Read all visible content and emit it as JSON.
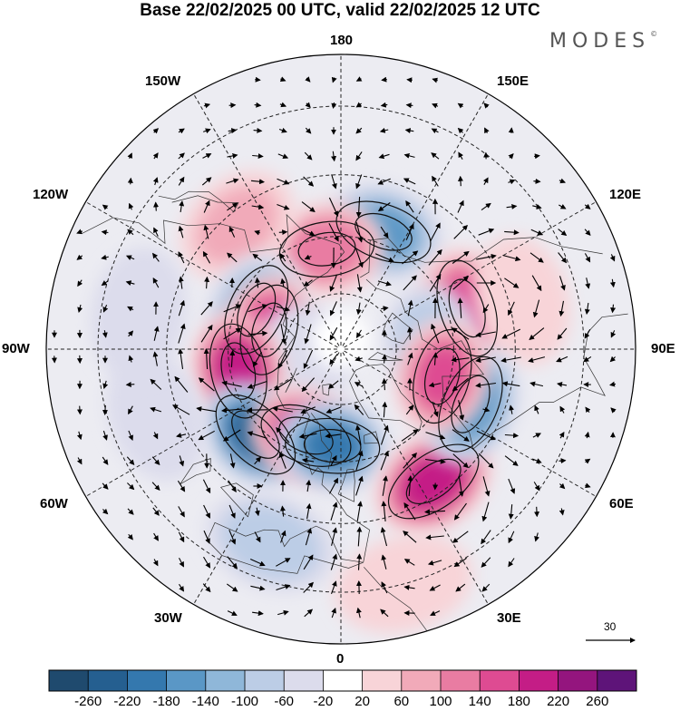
{
  "title": "Base 22/02/2025 00 UTC, valid 22/02/2025 12 UTC",
  "brand": "MODES",
  "brand_mark": "©",
  "longitude_labels": {
    "lon_180": "180",
    "lon_150w": "150W",
    "lon_150e": "150E",
    "lon_120w": "120W",
    "lon_120e": "120E",
    "lon_90w": "90W",
    "lon_90e": "90E",
    "lon_60w": "60W",
    "lon_60e": "60E",
    "lon_30w": "30W",
    "lon_30e": "30E",
    "lon_0": "0"
  },
  "wind_reference": {
    "value": "30"
  },
  "colorbar": {
    "ticks": [
      "-260",
      "-220",
      "-180",
      "-140",
      "-100",
      "-60",
      "-20",
      "20",
      "60",
      "100",
      "140",
      "180",
      "220",
      "260"
    ],
    "colors": [
      "#1f4a6e",
      "#255f90",
      "#3478ae",
      "#5a97c6",
      "#8fb7d9",
      "#bccde6",
      "#dcdcec",
      "#ffffff",
      "#f8d4d8",
      "#f1aab9",
      "#e97ca2",
      "#de4b92",
      "#c41d86",
      "#94157e",
      "#5e1479"
    ]
  },
  "anomaly_centers": [
    {
      "lat": 57,
      "lon": -160,
      "value": -160
    },
    {
      "lat": 63,
      "lon": 172,
      "value": 140
    },
    {
      "lat": 48,
      "lon": 140,
      "value": 80
    },
    {
      "lat": 65,
      "lon": 115,
      "value": -140
    },
    {
      "lat": 70,
      "lon": 105,
      "value": 180
    },
    {
      "lat": 55,
      "lon": -108,
      "value": 170
    },
    {
      "lat": 42,
      "lon": -105,
      "value": 60
    },
    {
      "lat": 66,
      "lon": -95,
      "value": -100
    },
    {
      "lat": 80,
      "lon": 80,
      "value": -60
    },
    {
      "lat": 62,
      "lon": 78,
      "value": 220
    },
    {
      "lat": 58,
      "lon": 45,
      "value": -240
    },
    {
      "lat": 65,
      "lon": 22,
      "value": 200
    },
    {
      "lat": 64,
      "lon": 5,
      "value": -200
    },
    {
      "lat": 48,
      "lon": -35,
      "value": 230
    },
    {
      "lat": 53,
      "lon": -67,
      "value": -180
    },
    {
      "lat": 62,
      "lon": -75,
      "value": 160
    },
    {
      "lat": 38,
      "lon": 20,
      "value": -100
    },
    {
      "lat": 40,
      "lon": 70,
      "value": -60
    },
    {
      "lat": 38,
      "lon": 100,
      "value": -40
    },
    {
      "lat": 30,
      "lon": -15,
      "value": 40
    }
  ]
}
